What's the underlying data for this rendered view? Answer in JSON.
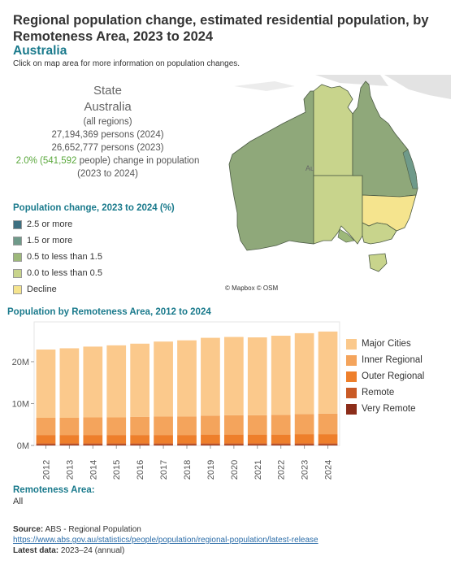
{
  "header": {
    "title": "Regional population change, estimated residential population, by Remoteness Area, 2023 to 2024",
    "subtitle": "Australia",
    "instruction": "Click on map area for more information on population changes."
  },
  "info": {
    "label": "State",
    "name": "Australia",
    "scope": "(all regions)",
    "pop_2024": "27,194,369 persons (2024)",
    "pop_2023": "26,652,777 persons (2023)",
    "change_highlight": "2.0% (541,592",
    "change_rest": " people) change in population",
    "change_period": "(2023 to 2024)"
  },
  "map_legend": {
    "title": "Population change, 2023 to 2024 (%)",
    "items": [
      {
        "label": "2.5 or more",
        "color": "#3d6f80"
      },
      {
        "label": "1.5 or more",
        "color": "#6f9a8a"
      },
      {
        "label": "0.5 to less than 1.5",
        "color": "#9db87a"
      },
      {
        "label": "0.0 to less than 0.5",
        "color": "#c8d48c"
      },
      {
        "label": "Decline",
        "color": "#f5e48e"
      }
    ]
  },
  "map": {
    "credit": "© Mapbox © OSM",
    "overlay_label": "Au"
  },
  "chart_title": "Population by Remoteness Area, 2012 to 2024",
  "chart_data": {
    "type": "bar",
    "stacked": true,
    "categories": [
      "2012",
      "2013",
      "2014",
      "2015",
      "2016",
      "2017",
      "2018",
      "2019",
      "2020",
      "2021",
      "2022",
      "2023",
      "2024"
    ],
    "series": [
      {
        "name": "Very Remote",
        "color": "#8c2d1a",
        "values": [
          0.2,
          0.2,
          0.2,
          0.2,
          0.2,
          0.2,
          0.2,
          0.2,
          0.2,
          0.2,
          0.2,
          0.2,
          0.2
        ]
      },
      {
        "name": "Remote",
        "color": "#c95a26",
        "values": [
          0.3,
          0.3,
          0.3,
          0.3,
          0.3,
          0.3,
          0.3,
          0.3,
          0.3,
          0.3,
          0.3,
          0.3,
          0.3
        ]
      },
      {
        "name": "Outer Regional",
        "color": "#ee7f2b",
        "values": [
          2.0,
          2.0,
          2.0,
          2.0,
          2.0,
          2.0,
          2.0,
          2.1,
          2.1,
          2.1,
          2.1,
          2.2,
          2.2
        ]
      },
      {
        "name": "Inner Regional",
        "color": "#f4a45c",
        "values": [
          4.1,
          4.1,
          4.2,
          4.2,
          4.3,
          4.4,
          4.4,
          4.5,
          4.6,
          4.6,
          4.7,
          4.8,
          4.9
        ]
      },
      {
        "name": "Major Cities",
        "color": "#fbc98c",
        "values": [
          16.3,
          16.6,
          16.9,
          17.2,
          17.5,
          17.9,
          18.2,
          18.6,
          18.7,
          18.6,
          18.9,
          19.3,
          19.6
        ]
      }
    ],
    "y_ticks": [
      0,
      10,
      20
    ],
    "y_tick_labels": [
      "0M",
      "10M",
      "20M"
    ],
    "ylim": [
      0,
      29.5
    ],
    "unit": "millions",
    "legend_position": "right",
    "legend_order": [
      "Major Cities",
      "Inner Regional",
      "Outer Regional",
      "Remote",
      "Very Remote"
    ]
  },
  "filter": {
    "title": "Remoteness Area:",
    "value": "All"
  },
  "footer": {
    "source_label": "Source:",
    "source_text": " ABS - Regional Population",
    "link": "https://www.abs.gov.au/statistics/people/population/regional-population/latest-release",
    "latest_label": "Latest data:",
    "latest_text": " 2023–24 (annual)"
  }
}
